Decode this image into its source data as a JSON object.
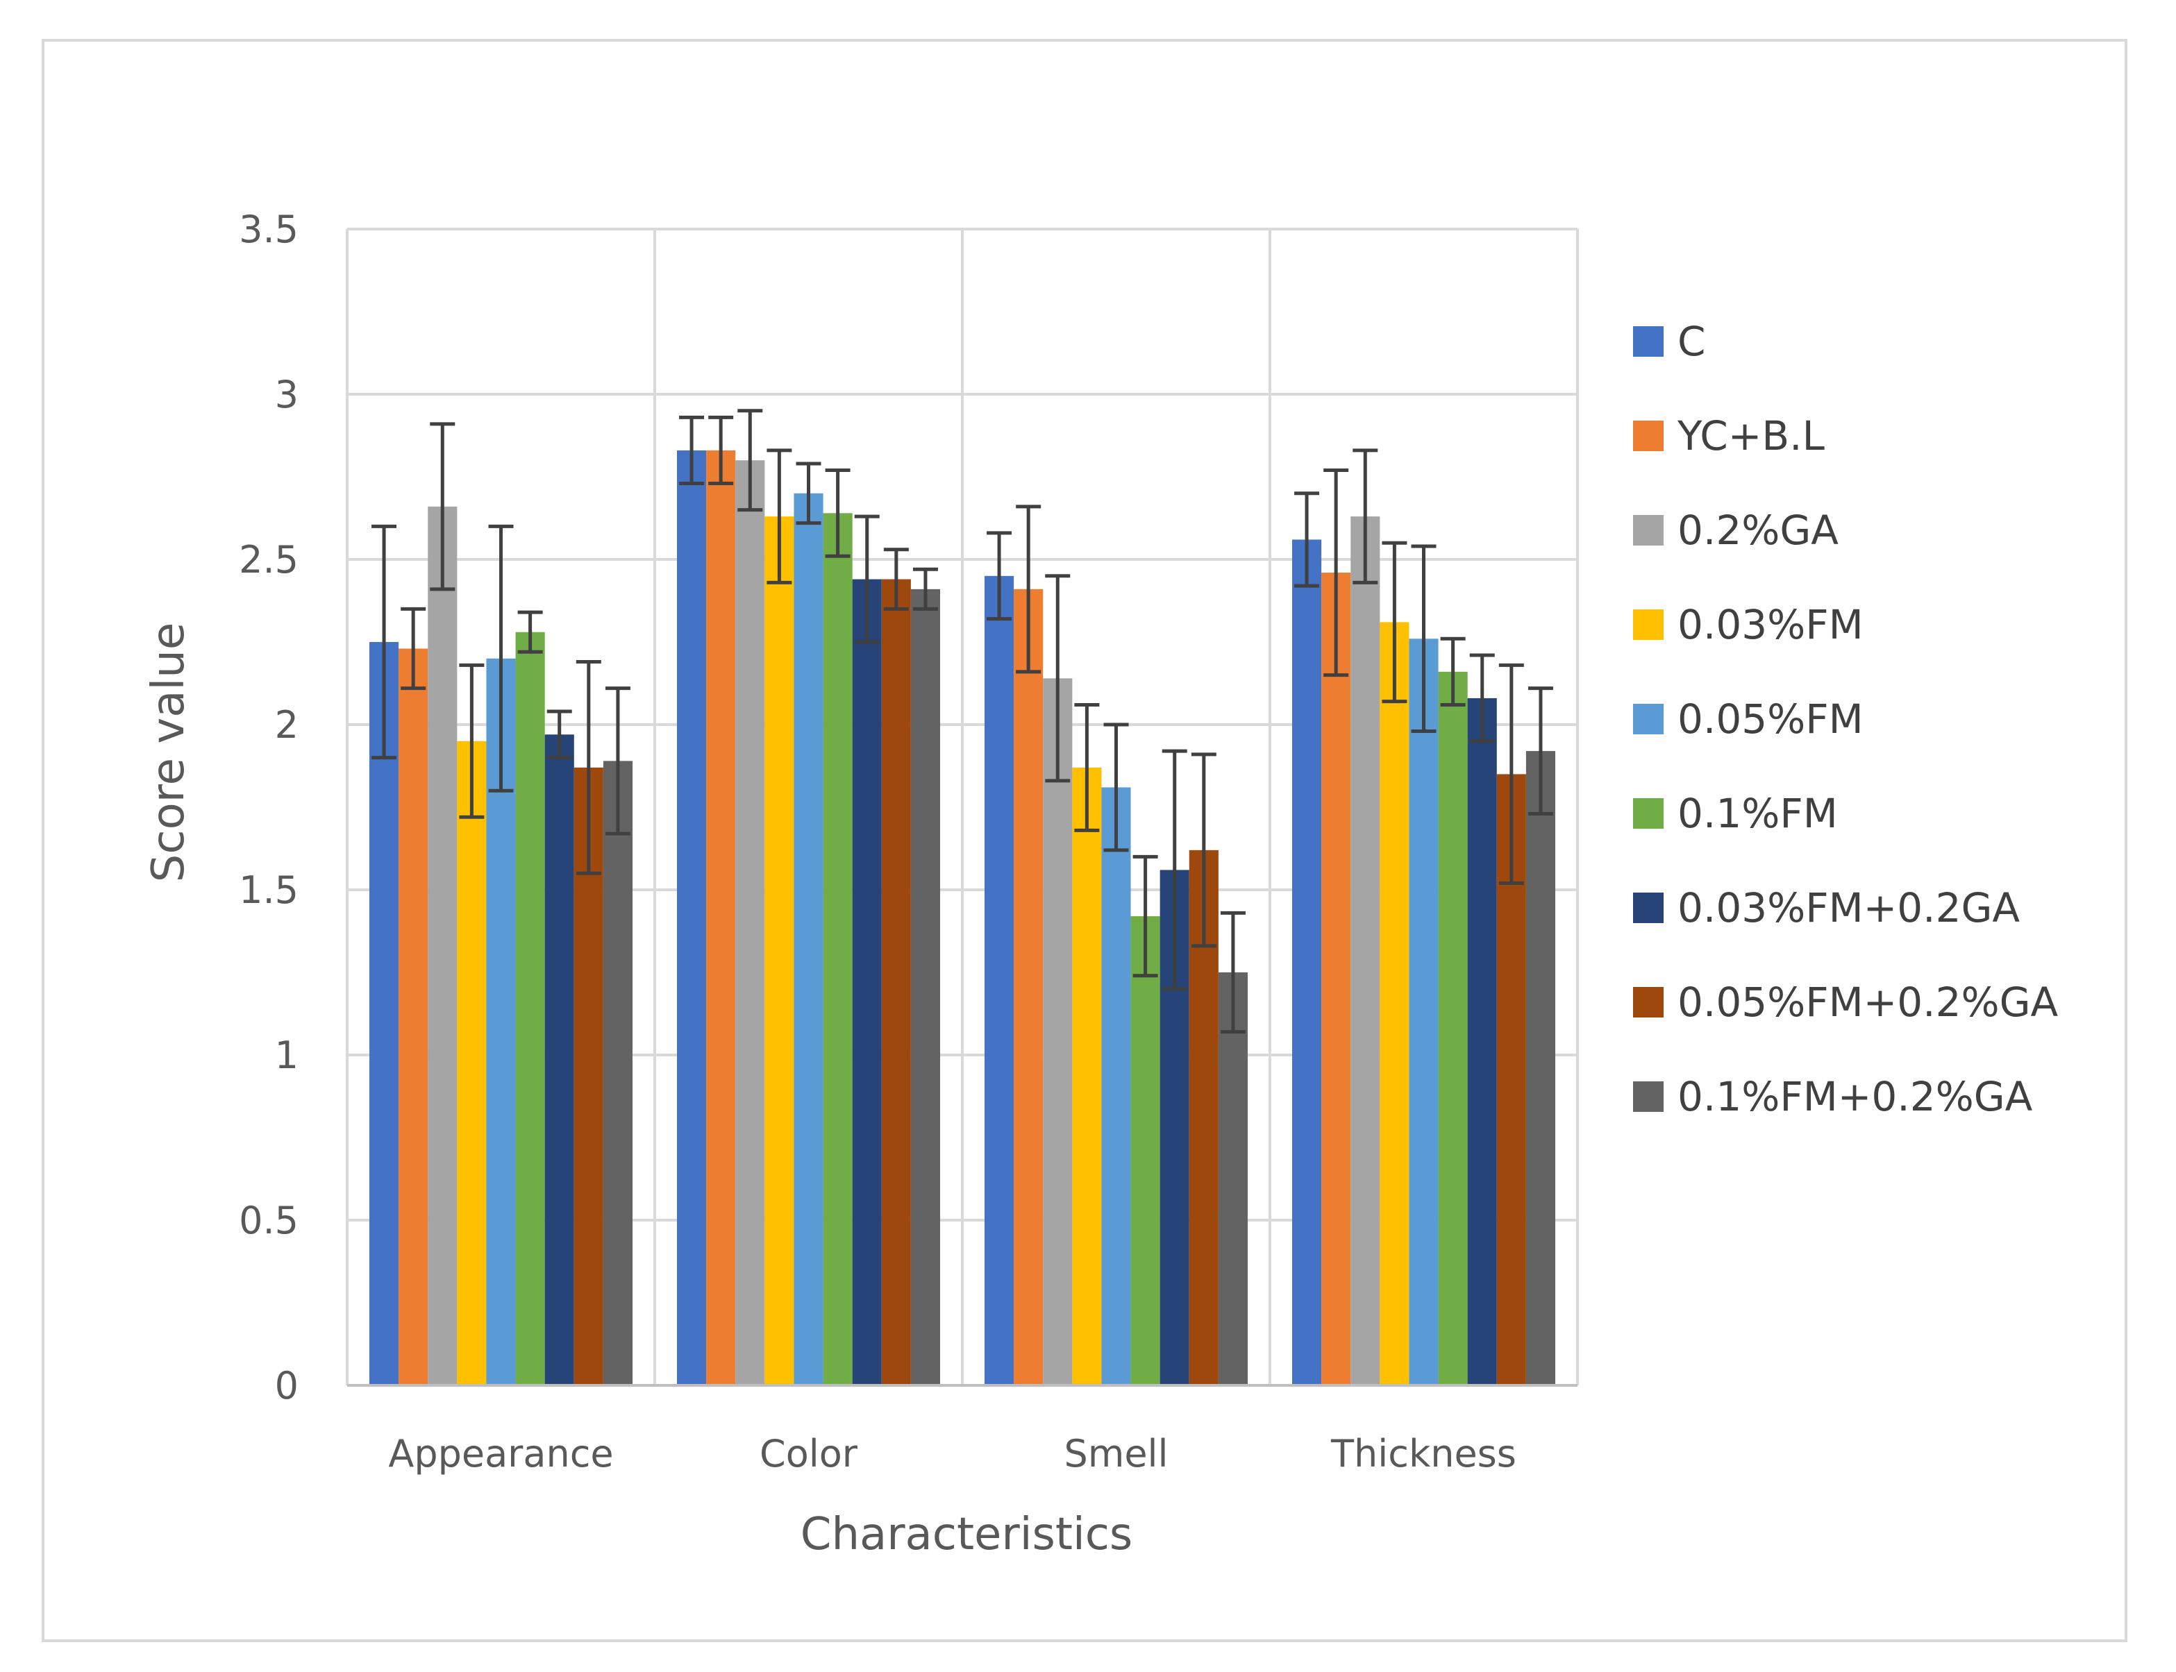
{
  "chart_data": {
    "type": "bar",
    "title": "",
    "xlabel": "Characteristics",
    "ylabel": "Score value",
    "ylim": [
      0,
      3.5
    ],
    "yticks": [
      "0",
      "0.5",
      "1",
      "1.5",
      "2",
      "2.5",
      "3",
      "3.5"
    ],
    "grid": true,
    "legend_position": "right",
    "error_bars": true,
    "categories": [
      "Appearance",
      "Color",
      "Smell",
      "Thickness"
    ],
    "series": [
      {
        "name": "C",
        "color": "#4472C4",
        "values": [
          2.25,
          2.83,
          2.45,
          2.56
        ],
        "errors": [
          0.35,
          0.1,
          0.13,
          0.14
        ]
      },
      {
        "name": "YC+B.L",
        "color": "#ED7D31",
        "values": [
          2.23,
          2.83,
          2.41,
          2.46
        ],
        "errors": [
          0.12,
          0.1,
          0.25,
          0.31
        ]
      },
      {
        "name": "0.2%GA",
        "color": "#A5A5A5",
        "values": [
          2.66,
          2.8,
          2.14,
          2.63
        ],
        "errors": [
          0.25,
          0.15,
          0.31,
          0.2
        ]
      },
      {
        "name": "0.03%FM",
        "color": "#FFC000",
        "values": [
          1.95,
          2.63,
          1.87,
          2.31
        ],
        "errors": [
          0.23,
          0.2,
          0.19,
          0.24
        ]
      },
      {
        "name": "0.05%FM",
        "color": "#5B9BD5",
        "values": [
          2.2,
          2.7,
          1.81,
          2.26
        ],
        "errors": [
          0.4,
          0.09,
          0.19,
          0.28
        ]
      },
      {
        "name": "0.1%FM",
        "color": "#70AD47",
        "values": [
          2.28,
          2.64,
          1.42,
          2.16
        ],
        "errors": [
          0.06,
          0.13,
          0.18,
          0.1
        ]
      },
      {
        "name": "0.03%FM+0.2GA",
        "color": "#264478",
        "values": [
          1.97,
          2.44,
          1.56,
          2.08
        ],
        "errors": [
          0.07,
          0.19,
          0.36,
          0.13
        ]
      },
      {
        "name": "0.05%FM+0.2%GA",
        "color": "#9E480E",
        "values": [
          1.87,
          2.44,
          1.62,
          1.85
        ],
        "errors": [
          0.32,
          0.09,
          0.29,
          0.33
        ]
      },
      {
        "name": "0.1%FM+0.2%GA",
        "color": "#636363",
        "values": [
          1.89,
          2.41,
          1.25,
          1.92
        ],
        "errors": [
          0.22,
          0.06,
          0.18,
          0.19
        ]
      }
    ]
  }
}
